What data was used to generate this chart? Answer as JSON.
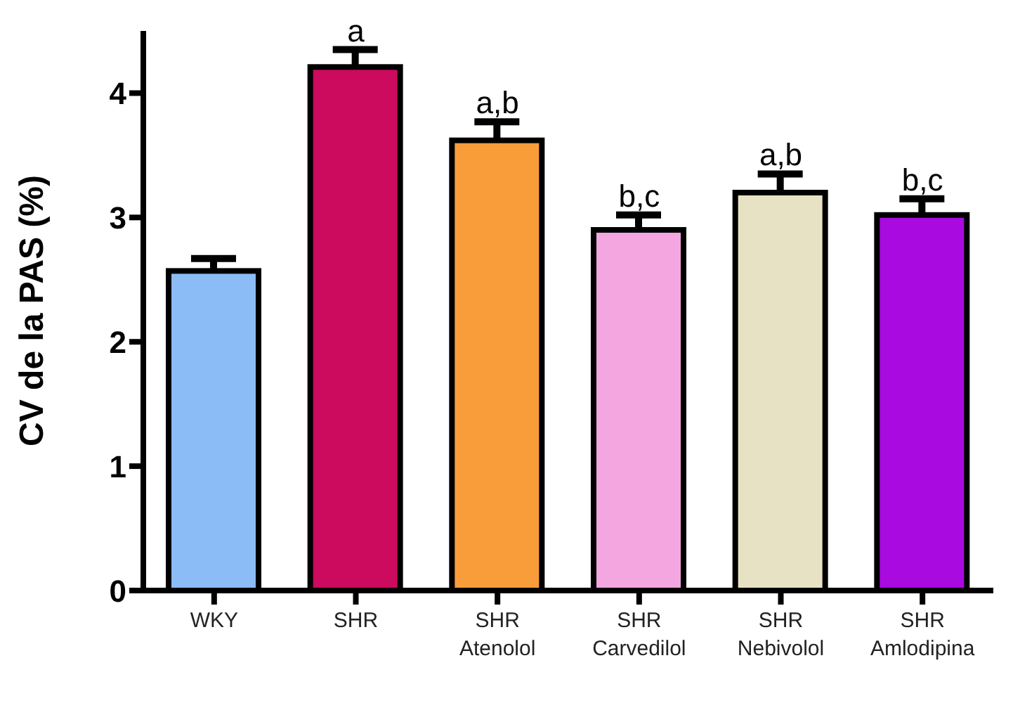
{
  "chart_data": {
    "type": "bar",
    "ylabel": "CV de la PAS (%)",
    "categories": [
      "WKY",
      "SHR",
      "SHR\nAtenolol",
      "SHR\nCarvedilol",
      "SHR\nNebivolol",
      "SHR\nAmlodipina"
    ],
    "values": [
      2.57,
      4.21,
      3.62,
      2.9,
      3.2,
      3.02
    ],
    "colors": [
      "#8bbcf5",
      "#cc0a5e",
      "#f99d3a",
      "#f3a6e0",
      "#e8e2c4",
      "#a80ae0"
    ],
    "errors": [
      [
        2.57,
        2.67
      ],
      [
        4.21,
        4.35
      ],
      [
        3.62,
        3.77
      ],
      [
        2.9,
        3.02
      ],
      [
        3.2,
        3.35
      ],
      [
        3.02,
        3.15
      ]
    ],
    "annotations": [
      {
        "text": "a",
        "x": "SHR",
        "y": 4.35
      },
      {
        "text": "a,b",
        "x": "SHR\nAtenolol",
        "y": 3.77
      },
      {
        "text": "b,c",
        "x": "SHR\nCarvedilol",
        "y": 3.02
      },
      {
        "text": "a,b",
        "x": "SHR\nNebivolol",
        "y": 3.35
      },
      {
        "text": "b,c",
        "x": "SHR\nAmlodipina",
        "y": 3.15
      }
    ],
    "ylim": [
      0,
      4.5
    ],
    "yticks": [
      0,
      1,
      2,
      3,
      4
    ],
    "grid": false,
    "legend": false
  }
}
